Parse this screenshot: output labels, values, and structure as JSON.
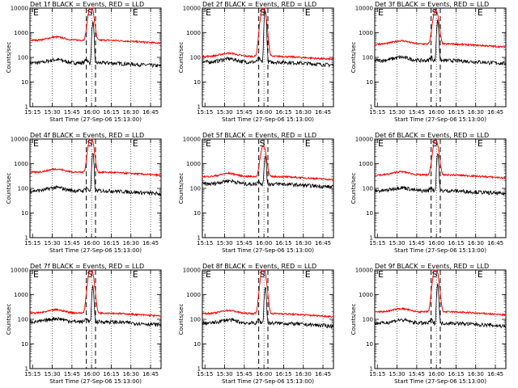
{
  "layout_note": "3x3 grid of detector count-rate plots",
  "colors": {
    "events": "#000000",
    "lld": "#ff0000",
    "axes": "#000000",
    "background": "#ffffff"
  },
  "xlabel": "Start Time (27-Sep-06 15:13:00)",
  "ylabel": "Counts/sec",
  "y_tick_labels": [
    "1",
    "10",
    "100",
    "1000",
    "10000"
  ],
  "x_tick_labels": [
    "15:15",
    "15:30",
    "15:45",
    "16:00",
    "16:15",
    "16:30",
    "16:45"
  ],
  "markers": {
    "start": "E",
    "interval": "S",
    "end": "E"
  },
  "chart_data": [
    {
      "type": "line",
      "title": "Det 1f BLACK = Events, RED = LLD",
      "yscale": "log",
      "ylim": [
        1,
        10000
      ],
      "xlim_min": [
        0,
        100
      ],
      "x_ticks_min": [
        2,
        17,
        32,
        47,
        62,
        77,
        92
      ],
      "grid_dotted": true,
      "dashed_interval_min": [
        43,
        50
      ],
      "series": [
        {
          "name": "Events",
          "color": "#000000",
          "baseline": 60,
          "peak": 2500
        },
        {
          "name": "LLD",
          "color": "#ff0000",
          "baseline": 500,
          "peak": 12000
        }
      ]
    },
    {
      "type": "line",
      "title": "Det 2f BLACK = Events, RED = LLD",
      "yscale": "log",
      "ylim": [
        1,
        10000
      ],
      "xlim_min": [
        0,
        100
      ],
      "x_ticks_min": [
        2,
        17,
        32,
        47,
        62,
        77,
        92
      ],
      "grid_dotted": true,
      "dashed_interval_min": [
        43,
        50
      ],
      "series": [
        {
          "name": "Events",
          "color": "#000000",
          "baseline": 65,
          "peak": 9000
        },
        {
          "name": "LLD",
          "color": "#ff0000",
          "baseline": 110,
          "peak": 11000
        }
      ]
    },
    {
      "type": "line",
      "title": "Det 3f BLACK = Events, RED = LLD",
      "yscale": "log",
      "ylim": [
        1,
        10000
      ],
      "xlim_min": [
        0,
        100
      ],
      "x_ticks_min": [
        2,
        17,
        32,
        47,
        62,
        77,
        92
      ],
      "grid_dotted": true,
      "dashed_interval_min": [
        43,
        50
      ],
      "series": [
        {
          "name": "Events",
          "color": "#000000",
          "baseline": 75,
          "peak": 3000
        },
        {
          "name": "LLD",
          "color": "#ff0000",
          "baseline": 350,
          "peak": 8000
        }
      ]
    },
    {
      "type": "line",
      "title": "Det 4f BLACK = Events, RED = LLD",
      "yscale": "log",
      "ylim": [
        1,
        10000
      ],
      "xlim_min": [
        0,
        100
      ],
      "x_ticks_min": [
        2,
        17,
        32,
        47,
        62,
        77,
        92
      ],
      "grid_dotted": true,
      "dashed_interval_min": [
        43,
        50
      ],
      "series": [
        {
          "name": "Events",
          "color": "#000000",
          "baseline": 80,
          "peak": 2500
        },
        {
          "name": "LLD",
          "color": "#ff0000",
          "baseline": 450,
          "peak": 12000
        }
      ]
    },
    {
      "type": "line",
      "title": "Det 5f BLACK = Events, RED = LLD",
      "yscale": "log",
      "ylim": [
        1,
        10000
      ],
      "xlim_min": [
        0,
        100
      ],
      "x_ticks_min": [
        2,
        17,
        32,
        47,
        62,
        77,
        92
      ],
      "grid_dotted": true,
      "dashed_interval_min": [
        43,
        50
      ],
      "series": [
        {
          "name": "Events",
          "color": "#000000",
          "baseline": 150,
          "peak": 2000
        },
        {
          "name": "LLD",
          "color": "#ff0000",
          "baseline": 300,
          "peak": 5000
        }
      ]
    },
    {
      "type": "line",
      "title": "Det 6f BLACK = Events, RED = LLD",
      "yscale": "log",
      "ylim": [
        1,
        10000
      ],
      "xlim_min": [
        0,
        100
      ],
      "x_ticks_min": [
        2,
        17,
        32,
        47,
        62,
        77,
        92
      ],
      "grid_dotted": true,
      "dashed_interval_min": [
        43,
        50
      ],
      "series": [
        {
          "name": "Events",
          "color": "#000000",
          "baseline": 80,
          "peak": 2500
        },
        {
          "name": "LLD",
          "color": "#ff0000",
          "baseline": 350,
          "peak": 9000
        }
      ]
    },
    {
      "type": "line",
      "title": "Det 7f BLACK = Events, RED = LLD",
      "yscale": "log",
      "ylim": [
        1,
        10000
      ],
      "xlim_min": [
        0,
        100
      ],
      "x_ticks_min": [
        2,
        17,
        32,
        47,
        62,
        77,
        92
      ],
      "grid_dotted": true,
      "dashed_interval_min": [
        43,
        50
      ],
      "series": [
        {
          "name": "Events",
          "color": "#000000",
          "baseline": 80,
          "peak": 2000
        },
        {
          "name": "LLD",
          "color": "#ff0000",
          "baseline": 180,
          "peak": 12000
        }
      ]
    },
    {
      "type": "line",
      "title": "Det 8f BLACK = Events, RED = LLD",
      "yscale": "log",
      "ylim": [
        1,
        10000
      ],
      "xlim_min": [
        0,
        100
      ],
      "x_ticks_min": [
        2,
        17,
        32,
        47,
        62,
        77,
        92
      ],
      "grid_dotted": true,
      "dashed_interval_min": [
        43,
        50
      ],
      "series": [
        {
          "name": "Events",
          "color": "#000000",
          "baseline": 70,
          "peak": 2000
        },
        {
          "name": "LLD",
          "color": "#ff0000",
          "baseline": 170,
          "peak": 12000
        }
      ]
    },
    {
      "type": "line",
      "title": "Det 9f BLACK = Events, RED = LLD",
      "yscale": "log",
      "ylim": [
        1,
        10000
      ],
      "xlim_min": [
        0,
        100
      ],
      "x_ticks_min": [
        2,
        17,
        32,
        47,
        62,
        77,
        92
      ],
      "grid_dotted": true,
      "dashed_interval_min": [
        43,
        50
      ],
      "series": [
        {
          "name": "Events",
          "color": "#000000",
          "baseline": 70,
          "peak": 2500
        },
        {
          "name": "LLD",
          "color": "#ff0000",
          "baseline": 200,
          "peak": 12000
        }
      ]
    }
  ]
}
